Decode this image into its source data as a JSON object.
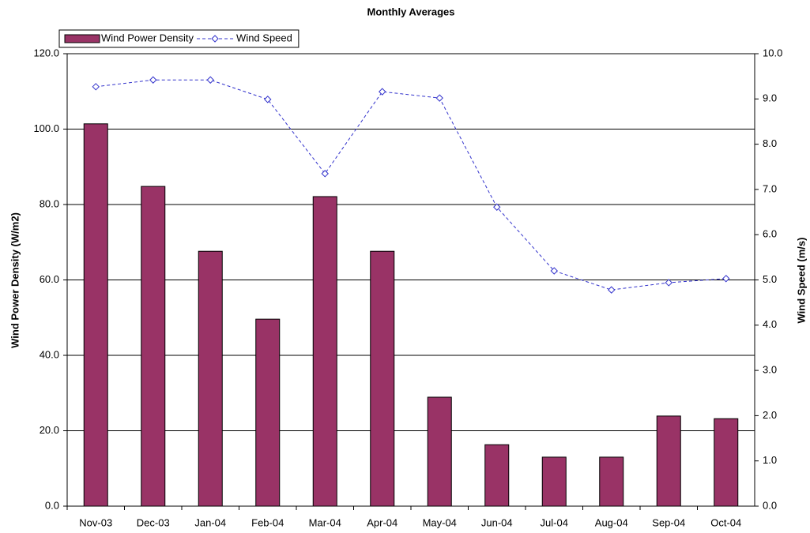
{
  "chart_data": {
    "type": "combo",
    "title": "Monthly Averages",
    "y_label": "Wind Power Density (W/m2)",
    "y2_label": "Wind Speed (m/s)",
    "categories": [
      "Nov-03",
      "Dec-03",
      "Jan-04",
      "Feb-04",
      "Mar-04",
      "Apr-04",
      "May-04",
      "Jun-04",
      "Jul-04",
      "Aug-04",
      "Sep-04",
      "Oct-04"
    ],
    "series": [
      {
        "name": "Wind Power Density",
        "type": "bar",
        "color": "#993366",
        "values": [
          101.4,
          84.8,
          67.6,
          49.6,
          82.1,
          67.6,
          28.9,
          16.3,
          13.0,
          13.0,
          23.9,
          23.2
        ]
      },
      {
        "name": "Wind Speed",
        "type": "line",
        "axis": "y2",
        "color": "#3333cc",
        "values": [
          9.27,
          9.42,
          9.42,
          8.99,
          7.35,
          9.16,
          9.02,
          6.61,
          5.2,
          4.78,
          4.94,
          5.03
        ]
      }
    ],
    "ylim": [
      0,
      120
    ],
    "yticks": [
      {
        "value": 0,
        "label": "0.0"
      },
      {
        "value": 20,
        "label": "20.0"
      },
      {
        "value": 40,
        "label": "40.0"
      },
      {
        "value": 60,
        "label": "60.0"
      },
      {
        "value": 80,
        "label": "80.0"
      },
      {
        "value": 100,
        "label": "100.0"
      },
      {
        "value": 120,
        "label": "120.0"
      }
    ],
    "y2lim": [
      0,
      10
    ],
    "y2ticks": [
      {
        "value": 0,
        "label": "0.0"
      },
      {
        "value": 1,
        "label": "1.0"
      },
      {
        "value": 2,
        "label": "2.0"
      },
      {
        "value": 3,
        "label": "3.0"
      },
      {
        "value": 4,
        "label": "4.0"
      },
      {
        "value": 5,
        "label": "5.0"
      },
      {
        "value": 6,
        "label": "6.0"
      },
      {
        "value": 7,
        "label": "7.0"
      },
      {
        "value": 8,
        "label": "8.0"
      },
      {
        "value": 9,
        "label": "9.0"
      },
      {
        "value": 10,
        "label": "10.0"
      }
    ],
    "grid": true,
    "legend": "top-left"
  }
}
